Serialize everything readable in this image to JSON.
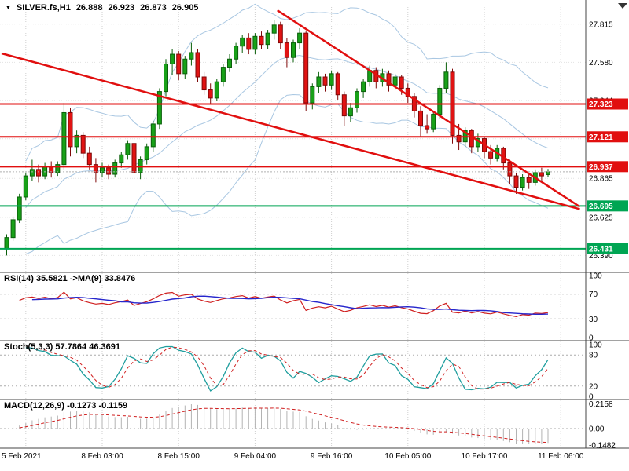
{
  "header": {
    "symbol": "SILVER.fs,H1",
    "open": "26.888",
    "high": "26.923",
    "low": "26.873",
    "close": "26.905"
  },
  "icons": {
    "symbol_dropdown": "▼"
  },
  "colors": {
    "bull": "#18a118",
    "bull_edge": "#0a5f0a",
    "bear": "#e11313",
    "bear_edge": "#7e0808",
    "bands": "#a9c7e2",
    "resistance": "#e10f0f",
    "support": "#00a553",
    "grid": "#cfcfcf",
    "hgrid": "#e2e2e2",
    "level_dash": "#ababab",
    "rsi": "#d02020",
    "rsi_ma": "#2626cc",
    "stoch_k": "#1f9e9e",
    "stoch_d": "#d02020",
    "macd_hist": "#b3b3b3",
    "macd_signal": "#d02020",
    "frame": "#444444",
    "tag_text": "#ffffff",
    "axis_text": "#000000"
  },
  "chart_data": {
    "type": "candlestick",
    "symbol": "SILVER.fs",
    "timeframe": "H1",
    "title": "SILVER.fs,H1 26.888 26.923 26.873 26.905",
    "price_axis": {
      "range": [
        26.3,
        27.935
      ],
      "ticks": [
        27.815,
        27.58,
        27.344,
        27.109,
        26.865,
        26.625,
        26.39
      ]
    },
    "x_labels": [
      {
        "index": 3,
        "label": "5 Feb 2021",
        "align": "left"
      },
      {
        "index": 15,
        "label": "8 Feb 03:00"
      },
      {
        "index": 27,
        "label": "8 Feb 15:00"
      },
      {
        "index": 39,
        "label": "9 Feb 04:00"
      },
      {
        "index": 51,
        "label": "9 Feb 16:00"
      },
      {
        "index": 63,
        "label": "10 Feb 05:00"
      },
      {
        "index": 75,
        "label": "10 Feb 17:00"
      },
      {
        "index": 87,
        "label": "11 Feb 06:00"
      }
    ],
    "current_price": 26.905,
    "levels": [
      {
        "price": 27.323,
        "kind": "resistance"
      },
      {
        "price": 27.121,
        "kind": "resistance"
      },
      {
        "price": 26.937,
        "kind": "resistance"
      },
      {
        "price": 26.695,
        "kind": "support"
      },
      {
        "price": 26.431,
        "kind": "support"
      }
    ],
    "trendlines": [
      {
        "from": {
          "index": -0.8,
          "price": 27.635
        },
        "to": {
          "index": 90,
          "price": 26.675
        }
      },
      {
        "from": {
          "index": 42.5,
          "price": 27.9
        },
        "to": {
          "index": 90,
          "price": 26.69
        }
      }
    ],
    "bollinger": {
      "period": 20,
      "deviation": 2
    },
    "indicators": [
      {
        "id": "rsi",
        "label": "RSI(14) 35.5821 ->MA(9) 33.8476",
        "period": 14,
        "ma_period": 9,
        "levels": [
          70,
          30
        ],
        "axis": [
          {
            "v": 100,
            "t": "100"
          },
          {
            "v": 70,
            "t": "70"
          },
          {
            "v": 30,
            "t": "30"
          },
          {
            "v": 0,
            "t": "0"
          }
        ]
      },
      {
        "id": "stoch",
        "label": "Stoch(5,3,3) 57.7864 46.3691",
        "k": 5,
        "d": 3,
        "slowing": 3,
        "levels": [
          80,
          20
        ],
        "axis": [
          {
            "v": 100,
            "t": "100"
          },
          {
            "v": 80,
            "t": "80"
          },
          {
            "v": 20,
            "t": "20"
          },
          {
            "v": 0,
            "t": "0"
          }
        ]
      },
      {
        "id": "macd",
        "label": "MACD(12,26,9) -0.1273 -0.1159",
        "fast": 12,
        "slow": 26,
        "signal": 9,
        "levels": [],
        "axis": [
          {
            "v": 0.2158,
            "t": "0.2158"
          },
          {
            "v": 0,
            "t": "0.00"
          },
          {
            "v": -0.1482,
            "t": "-0.1482"
          }
        ]
      }
    ],
    "candles": [
      [
        26.43,
        26.52,
        26.39,
        26.5
      ],
      [
        26.5,
        26.63,
        26.48,
        26.61
      ],
      [
        26.61,
        26.77,
        26.59,
        26.75
      ],
      [
        26.75,
        26.9,
        26.73,
        26.88
      ],
      [
        26.88,
        26.98,
        26.85,
        26.92
      ],
      [
        26.92,
        26.95,
        26.84,
        26.88
      ],
      [
        26.88,
        26.96,
        26.86,
        26.94
      ],
      [
        26.94,
        26.97,
        26.87,
        26.9
      ],
      [
        26.9,
        26.97,
        26.88,
        26.95
      ],
      [
        26.95,
        27.33,
        26.92,
        27.27
      ],
      [
        27.27,
        27.3,
        27.0,
        27.06
      ],
      [
        27.06,
        27.16,
        27.02,
        27.13
      ],
      [
        27.13,
        27.15,
        26.99,
        27.02
      ],
      [
        27.02,
        27.06,
        26.92,
        26.95
      ],
      [
        26.95,
        26.99,
        26.84,
        26.9
      ],
      [
        26.9,
        26.96,
        26.87,
        26.93
      ],
      [
        26.93,
        26.95,
        26.86,
        26.89
      ],
      [
        26.89,
        26.98,
        26.87,
        26.96
      ],
      [
        26.96,
        27.03,
        26.93,
        27.01
      ],
      [
        27.01,
        27.1,
        26.98,
        27.08
      ],
      [
        27.08,
        27.09,
        26.77,
        26.9
      ],
      [
        26.9,
        27.0,
        26.86,
        26.98
      ],
      [
        26.98,
        27.08,
        26.95,
        27.06
      ],
      [
        27.06,
        27.22,
        27.03,
        27.2
      ],
      [
        27.2,
        27.42,
        27.17,
        27.4
      ],
      [
        27.4,
        27.6,
        27.37,
        27.57
      ],
      [
        27.57,
        27.66,
        27.5,
        27.63
      ],
      [
        27.63,
        27.65,
        27.47,
        27.51
      ],
      [
        27.51,
        27.62,
        27.48,
        27.6
      ],
      [
        27.6,
        27.7,
        27.56,
        27.64
      ],
      [
        27.64,
        27.66,
        27.46,
        27.49
      ],
      [
        27.49,
        27.52,
        27.38,
        27.41
      ],
      [
        27.41,
        27.45,
        27.32,
        27.36
      ],
      [
        27.36,
        27.48,
        27.34,
        27.46
      ],
      [
        27.46,
        27.57,
        27.43,
        27.55
      ],
      [
        27.55,
        27.63,
        27.52,
        27.6
      ],
      [
        27.6,
        27.7,
        27.57,
        27.68
      ],
      [
        27.68,
        27.75,
        27.64,
        27.73
      ],
      [
        27.73,
        27.76,
        27.63,
        27.66
      ],
      [
        27.66,
        27.76,
        27.63,
        27.74
      ],
      [
        27.74,
        27.77,
        27.66,
        27.69
      ],
      [
        27.69,
        27.78,
        27.66,
        27.76
      ],
      [
        27.76,
        27.84,
        27.72,
        27.81
      ],
      [
        27.81,
        27.83,
        27.66,
        27.7
      ],
      [
        27.7,
        27.73,
        27.55,
        27.61
      ],
      [
        27.61,
        27.72,
        27.58,
        27.7
      ],
      [
        27.7,
        27.79,
        27.66,
        27.76
      ],
      [
        27.76,
        27.77,
        27.28,
        27.33
      ],
      [
        27.33,
        27.45,
        27.29,
        27.43
      ],
      [
        27.43,
        27.52,
        27.39,
        27.49
      ],
      [
        27.49,
        27.51,
        27.4,
        27.44
      ],
      [
        27.44,
        27.53,
        27.41,
        27.51
      ],
      [
        27.51,
        27.52,
        27.35,
        27.38
      ],
      [
        27.38,
        27.4,
        27.19,
        27.25
      ],
      [
        27.25,
        27.33,
        27.21,
        27.3
      ],
      [
        27.3,
        27.42,
        27.27,
        27.4
      ],
      [
        27.4,
        27.48,
        27.36,
        27.46
      ],
      [
        27.46,
        27.56,
        27.43,
        27.53
      ],
      [
        27.53,
        27.55,
        27.42,
        27.46
      ],
      [
        27.46,
        27.54,
        27.43,
        27.51
      ],
      [
        27.51,
        27.53,
        27.4,
        27.44
      ],
      [
        27.44,
        27.51,
        27.41,
        27.49
      ],
      [
        27.49,
        27.5,
        27.38,
        27.42
      ],
      [
        27.42,
        27.45,
        27.33,
        27.37
      ],
      [
        27.37,
        27.39,
        27.24,
        27.28
      ],
      [
        27.28,
        27.31,
        27.12,
        27.19
      ],
      [
        27.19,
        27.26,
        27.14,
        27.17
      ],
      [
        27.17,
        27.28,
        27.15,
        27.26
      ],
      [
        27.26,
        27.44,
        27.23,
        27.42
      ],
      [
        27.42,
        27.58,
        27.39,
        27.52
      ],
      [
        27.52,
        27.54,
        27.08,
        27.13
      ],
      [
        27.13,
        27.2,
        27.04,
        27.09
      ],
      [
        27.09,
        27.18,
        27.06,
        27.16
      ],
      [
        27.16,
        27.17,
        27.02,
        27.06
      ],
      [
        27.06,
        27.14,
        27.03,
        27.11
      ],
      [
        27.11,
        27.12,
        26.99,
        27.03
      ],
      [
        27.03,
        27.07,
        26.95,
        26.99
      ],
      [
        26.99,
        27.07,
        26.97,
        27.05
      ],
      [
        27.05,
        27.06,
        26.92,
        26.96
      ],
      [
        26.96,
        26.98,
        26.83,
        26.88
      ],
      [
        26.88,
        26.9,
        26.77,
        26.81
      ],
      [
        26.81,
        26.89,
        26.79,
        26.87
      ],
      [
        26.87,
        26.89,
        26.8,
        26.84
      ],
      [
        26.84,
        26.92,
        26.82,
        26.9
      ],
      [
        26.9,
        26.93,
        26.85,
        26.88
      ],
      [
        26.888,
        26.923,
        26.873,
        26.905
      ]
    ]
  }
}
